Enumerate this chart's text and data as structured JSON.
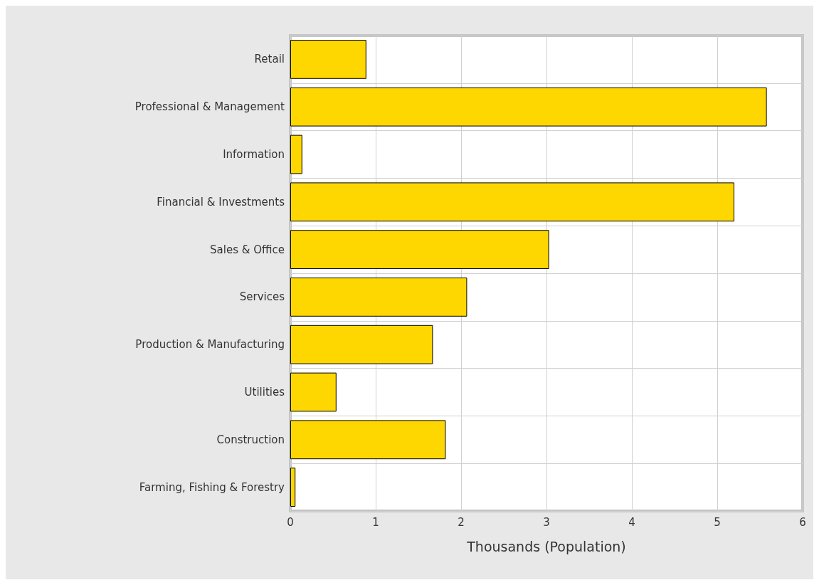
{
  "chart_data": {
    "type": "bar",
    "orientation": "horizontal",
    "xlabel": "Thousands (Population)",
    "categories": [
      "Retail",
      "Professional & Management",
      "Information",
      "Financial & Investments",
      "Sales & Office",
      "Services",
      "Production & Manufacturing",
      "Utilities",
      "Construction",
      "Farming, Fishing & Forestry"
    ],
    "values": [
      0.89,
      5.58,
      0.14,
      5.2,
      3.03,
      2.07,
      1.67,
      0.54,
      1.82,
      0.06
    ],
    "color": "#ffd700",
    "xlim": [
      0,
      6
    ],
    "xticks": [
      0,
      1,
      2,
      3,
      4,
      5,
      6
    ],
    "grid": true
  }
}
